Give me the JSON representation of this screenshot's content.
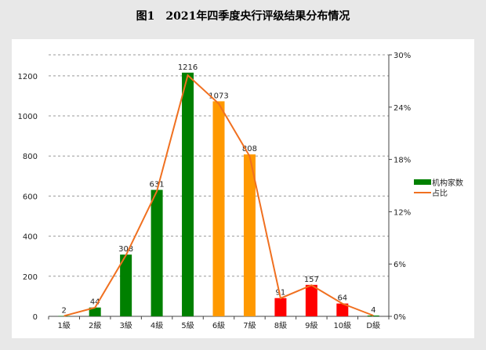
{
  "chart_data": {
    "type": "bar+line",
    "title": "图1　2021年四季度央行评级结果分布情况",
    "categories": [
      "1級",
      "2級",
      "3級",
      "4級",
      "5級",
      "6級",
      "7級",
      "8級",
      "9級",
      "10級",
      "D級"
    ],
    "series": [
      {
        "name": "机构家数",
        "type": "bar",
        "axis": "left",
        "values": [
          2,
          44,
          308,
          631,
          1216,
          1073,
          808,
          91,
          157,
          64,
          4
        ],
        "colors": [
          "#008000",
          "#008000",
          "#008000",
          "#008000",
          "#008000",
          "#FF9900",
          "#FF9900",
          "#FF0000",
          "#FF0000",
          "#FF0000",
          "#008000"
        ]
      },
      {
        "name": "占比",
        "type": "line",
        "axis": "right",
        "color": "#F07020",
        "values": [
          0.05,
          1.0,
          7.0,
          14.35,
          27.65,
          24.4,
          18.37,
          2.07,
          3.57,
          1.46,
          0.09
        ]
      }
    ],
    "y_left": {
      "ticks": [
        0,
        200,
        400,
        600,
        800,
        1000,
        1200
      ],
      "range": [
        0,
        1305
      ]
    },
    "y_right": {
      "ticks": [
        "0%",
        "6%",
        "12%",
        "18%",
        "24%",
        "30%"
      ],
      "range": [
        0,
        30
      ]
    },
    "grid": "dashed horizontal",
    "legend_position": "right",
    "background": "#e8e8e8"
  }
}
